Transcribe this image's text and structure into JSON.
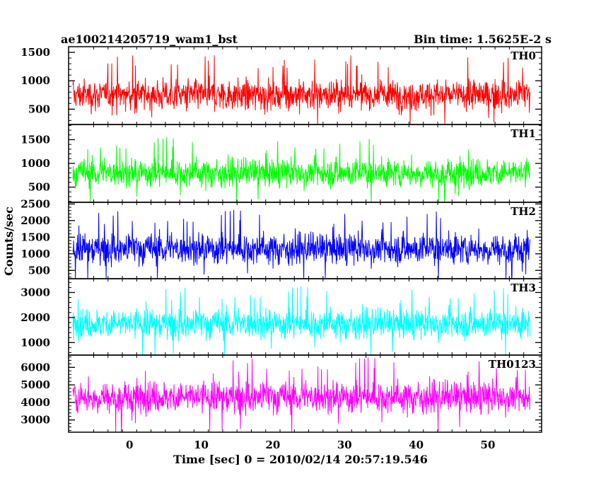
{
  "header": {
    "title": "ae100214205719_wam1_bst",
    "bin_time": "Bin time: 1.5625E-2 s"
  },
  "chart_data": {
    "type": "line",
    "xlabel": "Time [sec] 0 = 2010/02/14 20:57:19.546",
    "ylabel": "Counts/sec",
    "xlim": [
      -8.5,
      57.5
    ],
    "x_range_data": [
      -7.9,
      55.9
    ],
    "x_ticks": [
      0,
      10,
      20,
      30,
      40,
      50
    ],
    "panels": [
      {
        "name": "TH0",
        "color": "#ff0000",
        "ylim": [
          230,
          1600
        ],
        "y_ticks": [
          500,
          1000,
          1500
        ],
        "mean": 750,
        "spread": 190,
        "min": 230,
        "max": 1600
      },
      {
        "name": "TH1",
        "color": "#00ff00",
        "ylim": [
          180,
          1820
        ],
        "y_ticks": [
          500,
          1000,
          1500
        ],
        "mean": 800,
        "spread": 210,
        "min": 180,
        "max": 1820
      },
      {
        "name": "TH2",
        "color": "#0000ff",
        "ylim": [
          250,
          2550
        ],
        "y_ticks": [
          500,
          1000,
          1500,
          2000,
          2500
        ],
        "mean": 1150,
        "spread": 330,
        "min": 250,
        "max": 2550
      },
      {
        "name": "TH3",
        "color": "#00ffff",
        "ylim": [
          500,
          3550
        ],
        "y_ticks": [
          1000,
          2000,
          3000
        ],
        "mean": 1750,
        "spread": 420,
        "min": 500,
        "max": 3550
      },
      {
        "name": "TH0123",
        "color": "#ff00ff",
        "ylim": [
          2300,
          6700
        ],
        "y_ticks": [
          3000,
          4000,
          5000,
          6000
        ],
        "mean": 4300,
        "spread": 640,
        "min": 2300,
        "max": 6700
      }
    ]
  }
}
